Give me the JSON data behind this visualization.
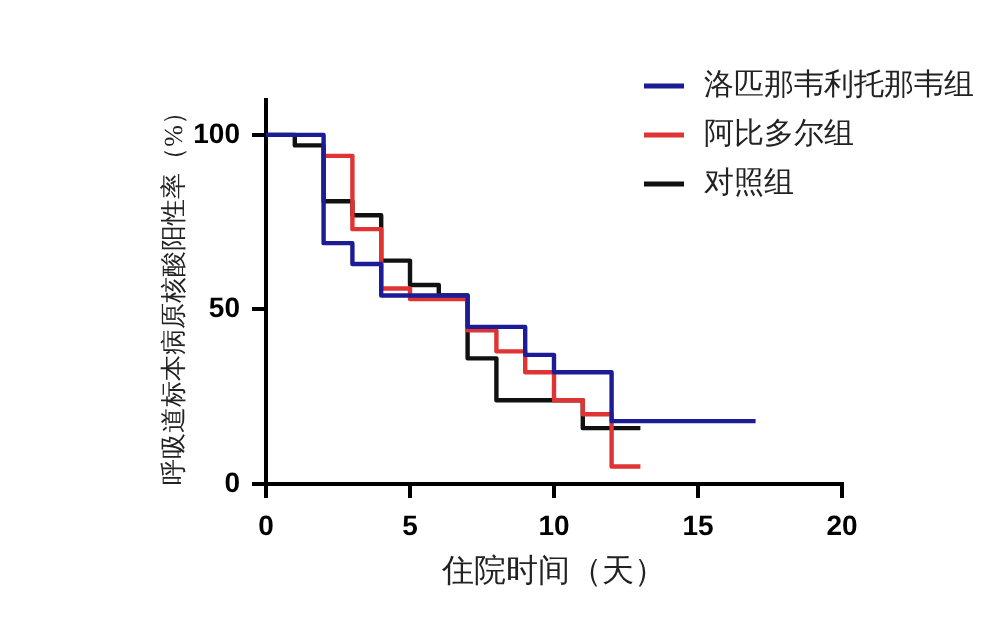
{
  "chart_data": {
    "type": "step",
    "xlabel": "住院时间（天）",
    "ylabel": "呼吸道标本病原核酸阳性率（%）",
    "xlim": [
      0,
      20
    ],
    "xticks": [
      0,
      5,
      10,
      15,
      20
    ],
    "ylim": [
      0,
      110
    ],
    "yticks": [
      0,
      50,
      100
    ],
    "grid": false,
    "legend": "top right",
    "series": [
      {
        "name": "洛匹那韦利托那韦组",
        "color": "#1c1c96",
        "x": [
          0,
          2,
          3,
          4,
          7,
          9,
          10,
          12,
          17
        ],
        "values": [
          100,
          69,
          63,
          54,
          45,
          37,
          32,
          18,
          18
        ]
      },
      {
        "name": "阿比多尔组",
        "color": "#e03333",
        "x": [
          2,
          3,
          4,
          5,
          7,
          8,
          9,
          10,
          11,
          12,
          13
        ],
        "values": [
          94,
          73,
          56,
          53,
          44,
          38,
          32,
          24,
          20,
          5,
          5
        ]
      },
      {
        "name": "对照组",
        "color": "#111111",
        "x": [
          0,
          1,
          2,
          3,
          4,
          5,
          6,
          7,
          8,
          11,
          13
        ],
        "values": [
          100,
          97,
          81,
          77,
          64,
          57,
          54,
          36,
          24,
          16,
          16
        ]
      }
    ]
  }
}
